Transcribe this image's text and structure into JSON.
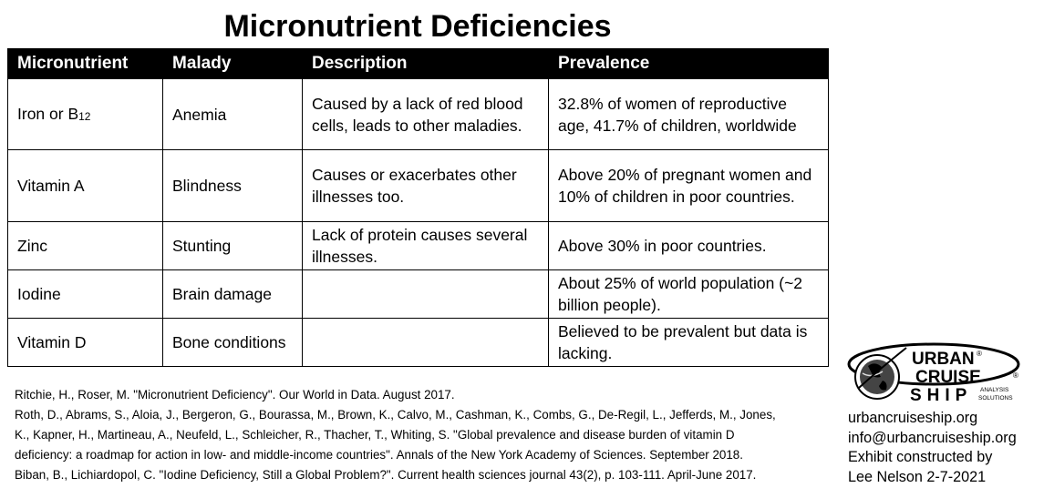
{
  "title": "Micronutrient Deficiencies",
  "table": {
    "headers": [
      "Micronutrient",
      "Malady",
      "Description",
      "Prevalence"
    ],
    "rows": [
      {
        "micronutrient": "Iron or B",
        "micronutrient_sub": "12",
        "malady": "Anemia",
        "description": "Caused by a lack of red blood cells, leads to other maladies.",
        "prevalence": "32.8% of women of reproductive age, 41.7% of children, worldwide"
      },
      {
        "micronutrient": "Vitamin A",
        "malady": "Blindness",
        "description": "Causes or exacerbates other illnesses too.",
        "prevalence": "Above 20% of pregnant women and 10% of children in poor countries."
      },
      {
        "micronutrient": "Zinc",
        "malady": "Stunting",
        "description": "Lack of protein causes several illnesses.",
        "prevalence": "Above 30% in poor countries."
      },
      {
        "micronutrient": "Iodine",
        "malady": "Brain damage",
        "description": "",
        "prevalence": "About 25% of world population (~2 billion people)."
      },
      {
        "micronutrient": "Vitamin D",
        "malady": "Bone conditions",
        "description": "",
        "prevalence": "Believed to be prevalent but data is lacking."
      }
    ]
  },
  "references": [
    "Ritchie, H., Roser, M. \"Micronutrient Deficiency\". Our World in Data. August 2017.",
    "Roth, D., Abrams, S., Aloia, J., Bergeron, G., Bourassa, M., Brown, K., Calvo, M., Cashman, K., Combs, G., De-Regil, L., Jefferds, M., Jones,",
    "K., Kapner, H., Martineau, A., Neufeld, L., Schleicher, R., Thacher, T., Whiting, S. \"Global prevalence and disease burden of vitamin D",
    "deficiency: a roadmap for action in low- and middle-income countries\". Annals of the New York Academy of Sciences. September 2018.",
    "Biban, B., Lichiardopol, C. \"Iodine Deficiency, Still a Global Problem?\". Current health sciences journal 43(2), p. 103-111. April-June 2017."
  ],
  "logo": {
    "word1": "URBAN",
    "word2": "CRUISE",
    "word3": "SHIP",
    "tagline1": "ANALYSIS",
    "tagline2": "SOLUTIONS",
    "registered": "®"
  },
  "contact": {
    "website": "urbancruiseship.org",
    "email": "info@urbancruiseship.org",
    "credit1": "Exhibit constructed by",
    "credit2": "Lee Nelson 2-7-2021"
  }
}
